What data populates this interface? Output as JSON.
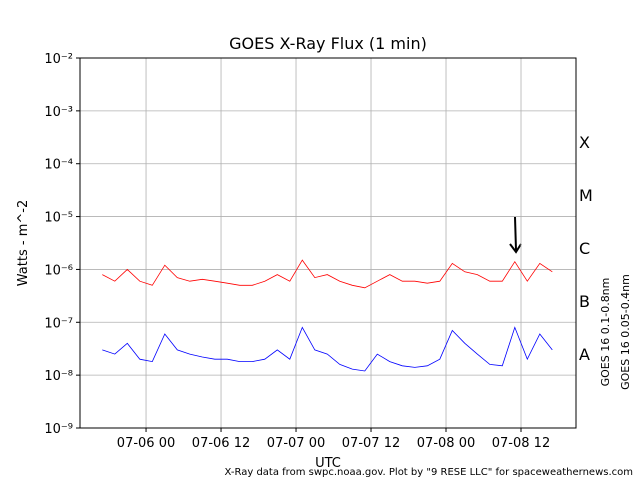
{
  "chart_data": {
    "type": "line",
    "title": "GOES X-Ray Flux (1 min)",
    "xlabel": "UTC",
    "ylabel": "Watts - m^-2",
    "footnote": "X-Ray data from swpc.noaa.gov. Plot by \"9 RESE LLC\" for spaceweathernews.com",
    "flare_classes": [
      "A",
      "B",
      "C",
      "M",
      "X"
    ],
    "log_y": true,
    "grid": true,
    "x": [
      "07-05 17",
      "07-05 19",
      "07-05 21",
      "07-05 23",
      "07-06 01",
      "07-06 03",
      "07-06 05",
      "07-06 07",
      "07-06 09",
      "07-06 11",
      "07-06 13",
      "07-06 15",
      "07-06 17",
      "07-06 19",
      "07-06 21",
      "07-06 23",
      "07-07 01",
      "07-07 03",
      "07-07 05",
      "07-07 07",
      "07-07 09",
      "07-07 11",
      "07-07 13",
      "07-07 15",
      "07-07 17",
      "07-07 19",
      "07-07 21",
      "07-07 23",
      "07-08 01",
      "07-08 03",
      "07-08 05",
      "07-08 07",
      "07-08 09",
      "07-08 11",
      "07-08 13",
      "07-08 15",
      "07-08 17"
    ],
    "xlim": [
      "07-05 13:26",
      "07-08 20:48"
    ],
    "xticks": [
      "07-06 00",
      "07-06 12",
      "07-07 00",
      "07-07 12",
      "07-08 00",
      "07-08 12"
    ],
    "ylim": [
      1e-09,
      0.01
    ],
    "yticks": [
      {
        "value": 1e-09,
        "label": "10⁻⁹"
      },
      {
        "value": 1e-08,
        "label": "10⁻⁸"
      },
      {
        "value": 1e-07,
        "label": "10⁻⁷"
      },
      {
        "value": 1e-06,
        "label": "10⁻⁶"
      },
      {
        "value": 1e-05,
        "label": "10⁻⁵"
      },
      {
        "value": 0.0001,
        "label": "10⁻⁴"
      },
      {
        "value": 0.001,
        "label": "10⁻³"
      },
      {
        "value": 0.01,
        "label": "10⁻²"
      }
    ],
    "series": [
      {
        "name": "GOES 16 0.1-0.8nm",
        "color": "#ff0000",
        "values": [
          8e-07,
          6e-07,
          1e-06,
          6e-07,
          5e-07,
          1.2e-06,
          7e-07,
          6e-07,
          6.5e-07,
          6e-07,
          5.5e-07,
          5e-07,
          5e-07,
          6e-07,
          8e-07,
          6e-07,
          1.5e-06,
          7e-07,
          8e-07,
          6e-07,
          5e-07,
          4.5e-07,
          6e-07,
          8e-07,
          6e-07,
          6e-07,
          5.5e-07,
          6e-07,
          1.3e-06,
          9e-07,
          8e-07,
          6e-07,
          6e-07,
          1.4e-06,
          6e-07,
          1.3e-06,
          9e-07
        ]
      },
      {
        "name": "GOES 16 0.05-0.4nm",
        "color": "#0000ff",
        "values": [
          3e-08,
          2.5e-08,
          4e-08,
          2e-08,
          1.8e-08,
          6e-08,
          3e-08,
          2.5e-08,
          2.2e-08,
          2e-08,
          2e-08,
          1.8e-08,
          1.8e-08,
          2e-08,
          3e-08,
          2e-08,
          8e-08,
          3e-08,
          2.5e-08,
          1.6e-08,
          1.3e-08,
          1.2e-08,
          2.5e-08,
          1.8e-08,
          1.5e-08,
          1.4e-08,
          1.5e-08,
          2e-08,
          7e-08,
          4e-08,
          2.5e-08,
          1.6e-08,
          1.5e-08,
          8e-08,
          2e-08,
          6e-08,
          3e-08
        ]
      }
    ]
  }
}
